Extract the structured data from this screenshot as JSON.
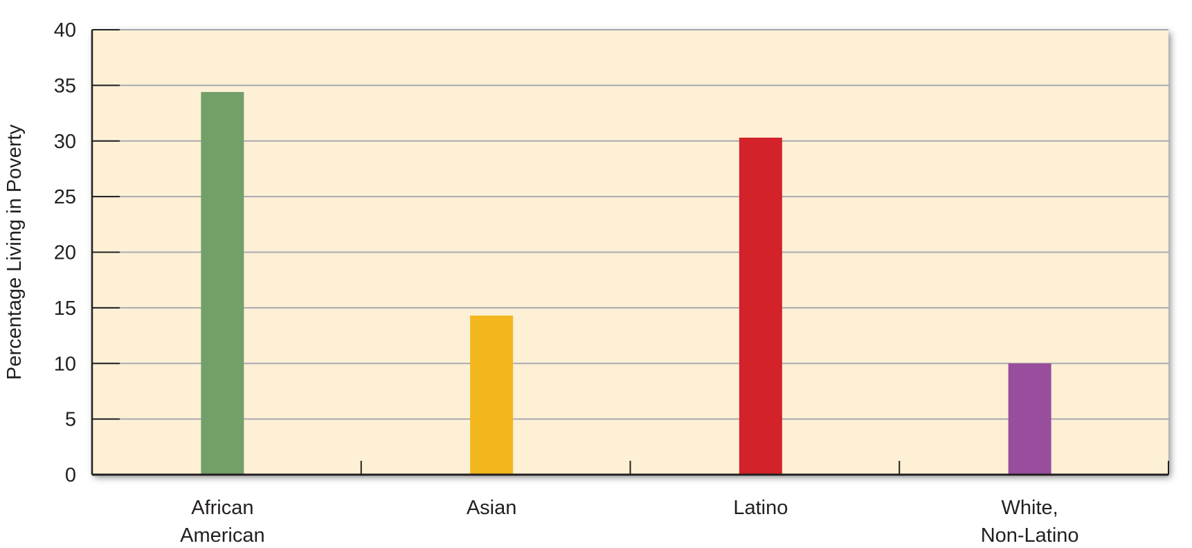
{
  "chart_data": {
    "type": "bar",
    "title": "",
    "xlabel": "",
    "ylabel": "Percentage Living in Poverty",
    "ylim": [
      0,
      40
    ],
    "yticks": [
      0,
      5,
      10,
      15,
      20,
      25,
      30,
      35,
      40
    ],
    "grid": true,
    "categories": [
      {
        "lines": [
          "African",
          "American"
        ]
      },
      {
        "lines": [
          "Asian"
        ]
      },
      {
        "lines": [
          "Latino"
        ]
      },
      {
        "lines": [
          "White,",
          "Non-Latino"
        ]
      }
    ],
    "values": [
      34.4,
      14.3,
      30.3,
      10.0
    ],
    "colors": [
      "#739f68",
      "#f2b71d",
      "#d3222a",
      "#984e9c"
    ],
    "plot_background": "#fdf0d5",
    "grid_color": "#a8a8ae",
    "axis_color": "#231f20"
  }
}
